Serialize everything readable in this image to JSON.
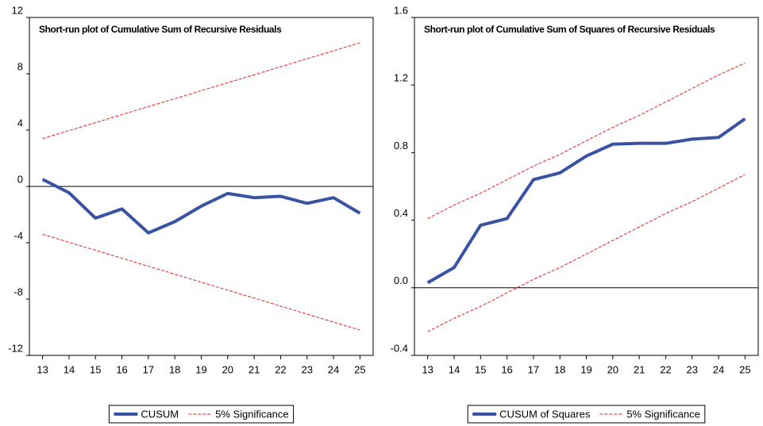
{
  "chart_data": [
    {
      "type": "line",
      "title": "Short-run plot of Cumulative Sum of Recursive Residuals",
      "categories": [
        "13",
        "14",
        "15",
        "16",
        "17",
        "18",
        "19",
        "20",
        "21",
        "22",
        "23",
        "24",
        "25"
      ],
      "series": [
        {
          "name": "CUSUM",
          "color": "#3a52a4",
          "values": [
            0.5,
            -0.45,
            -2.25,
            -1.6,
            -3.3,
            -2.5,
            -1.4,
            -0.5,
            -0.8,
            -0.7,
            -1.2,
            -0.8,
            -1.9
          ]
        },
        {
          "name": "5% Significance",
          "color": "#e8201c",
          "dashed": true,
          "upper": [
            3.4,
            3.97,
            4.53,
            5.1,
            5.67,
            6.23,
            6.8,
            7.37,
            7.93,
            8.5,
            9.07,
            9.63,
            10.2
          ],
          "lower": [
            -3.4,
            -3.97,
            -4.53,
            -5.1,
            -5.67,
            -6.23,
            -6.8,
            -7.37,
            -7.93,
            -8.5,
            -9.07,
            -9.63,
            -10.2
          ]
        }
      ],
      "ylim": [
        -12,
        12
      ],
      "yticks": [
        -12,
        -8,
        -4,
        0,
        4,
        8,
        12
      ],
      "zero_line": true
    },
    {
      "type": "line",
      "title": "Short-run plot of Cumulative Sum of Squares of Recursive Residuals",
      "categories": [
        "13",
        "14",
        "15",
        "16",
        "17",
        "18",
        "19",
        "20",
        "21",
        "22",
        "23",
        "24",
        "25"
      ],
      "series": [
        {
          "name": "CUSUM of Squares",
          "color": "#3a52a4",
          "values": [
            0.03,
            0.12,
            0.37,
            0.41,
            0.64,
            0.68,
            0.78,
            0.85,
            0.855,
            0.855,
            0.88,
            0.89,
            1.0
          ]
        },
        {
          "name": "5% Significance",
          "color": "#e8201c",
          "dashed": true,
          "upper": [
            0.41,
            0.49,
            0.56,
            0.64,
            0.72,
            0.79,
            0.87,
            0.95,
            1.02,
            1.1,
            1.18,
            1.26,
            1.33
          ],
          "lower": [
            -0.26,
            -0.18,
            -0.11,
            -0.03,
            0.05,
            0.12,
            0.2,
            0.28,
            0.36,
            0.44,
            0.51,
            0.59,
            0.67
          ]
        }
      ],
      "ylim": [
        -0.4,
        1.6
      ],
      "yticks": [
        -0.4,
        {
          "value": 0,
          "label": "0.0"
        },
        0.4,
        0.8,
        1.2,
        1.6
      ],
      "zero_line": true
    }
  ]
}
